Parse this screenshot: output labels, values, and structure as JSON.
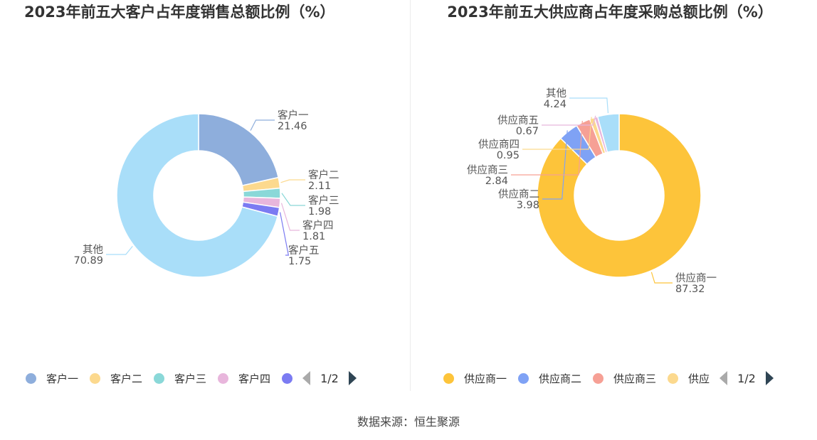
{
  "source": "数据来源：恒生聚源",
  "chart_data": [
    {
      "type": "pie",
      "title": "2023年前五大客户占年度销售总额比例（%）",
      "categories": [
        "客户一",
        "客户二",
        "客户三",
        "客户四",
        "客户五",
        "其他"
      ],
      "values": [
        21.46,
        2.11,
        1.98,
        1.81,
        1.75,
        70.89
      ],
      "colors": [
        "#8eaedc",
        "#fcd98e",
        "#8ad8d8",
        "#e8b6dc",
        "#7b7bf2",
        "#a9def9"
      ],
      "legend": {
        "items": [
          "客户一",
          "客户二",
          "客户三",
          "客户四",
          ""
        ],
        "page": "1/2"
      }
    },
    {
      "type": "pie",
      "title": "2023年前五大供应商占年度采购总额比例（%）",
      "categories": [
        "供应商一",
        "供应商二",
        "供应商三",
        "供应商四",
        "供应商五",
        "其他"
      ],
      "values": [
        87.32,
        3.98,
        2.84,
        0.95,
        0.67,
        4.24
      ],
      "colors": [
        "#fdc43a",
        "#7fa2f5",
        "#f6a095",
        "#fcd98e",
        "#e8b6dc",
        "#a9def9"
      ],
      "legend": {
        "items": [
          "供应商一",
          "供应商二",
          "供应商三",
          "供应"
        ],
        "page": "1/2"
      }
    }
  ]
}
